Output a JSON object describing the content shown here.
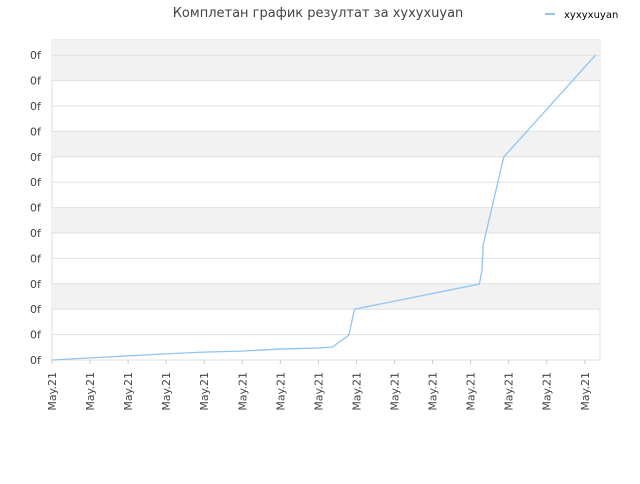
{
  "chart_data": {
    "type": "line",
    "title": "Комплетан график резултат за xyxyxuyan",
    "x": [
      0,
      0.95,
      1.97,
      2.97,
      3.97,
      4.97,
      5.97,
      6.97,
      7.37,
      7.8,
      7.95,
      11.23,
      11.3,
      11.33,
      11.87,
      14.28
    ],
    "series": [
      {
        "name": "xyxyxuyan",
        "color": "#92c5ef",
        "values": [
          0,
          0.08,
          0.16,
          0.24,
          0.31,
          0.35,
          0.43,
          0.47,
          0.51,
          0.98,
          2.0,
          2.99,
          3.54,
          4.53,
          7.99,
          12.0
        ]
      }
    ],
    "xlim": [
      0,
      14.4
    ],
    "xticks": [
      {
        "value": 0,
        "label": "May.21"
      },
      {
        "value": 1,
        "label": "May.21"
      },
      {
        "value": 2,
        "label": "May.21"
      },
      {
        "value": 3,
        "label": "May.21"
      },
      {
        "value": 4,
        "label": "May.21"
      },
      {
        "value": 5,
        "label": "May.21"
      },
      {
        "value": 6,
        "label": "May.21"
      },
      {
        "value": 7,
        "label": "May.21"
      },
      {
        "value": 8,
        "label": "May.21"
      },
      {
        "value": 9,
        "label": "May.21"
      },
      {
        "value": 10,
        "label": "May.21"
      },
      {
        "value": 11,
        "label": "May.21"
      },
      {
        "value": 12,
        "label": "May.21"
      },
      {
        "value": 13,
        "label": "May.21"
      },
      {
        "value": 14,
        "label": "May.21"
      }
    ],
    "ylim": [
      0,
      12.6
    ],
    "yticks": [
      {
        "value": 0,
        "label": "0f"
      },
      {
        "value": 1,
        "label": "0f"
      },
      {
        "value": 2,
        "label": "0f"
      },
      {
        "value": 3,
        "label": "0f"
      },
      {
        "value": 4,
        "label": "0f"
      },
      {
        "value": 5,
        "label": "0f"
      },
      {
        "value": 6,
        "label": "0f"
      },
      {
        "value": 7,
        "label": "0f"
      },
      {
        "value": 8,
        "label": "0f"
      },
      {
        "value": 9,
        "label": "0f"
      },
      {
        "value": 10,
        "label": "0f"
      },
      {
        "value": 11,
        "label": "0f"
      },
      {
        "value": 12,
        "label": "0f"
      }
    ],
    "grid": true,
    "legend": "top-right"
  }
}
